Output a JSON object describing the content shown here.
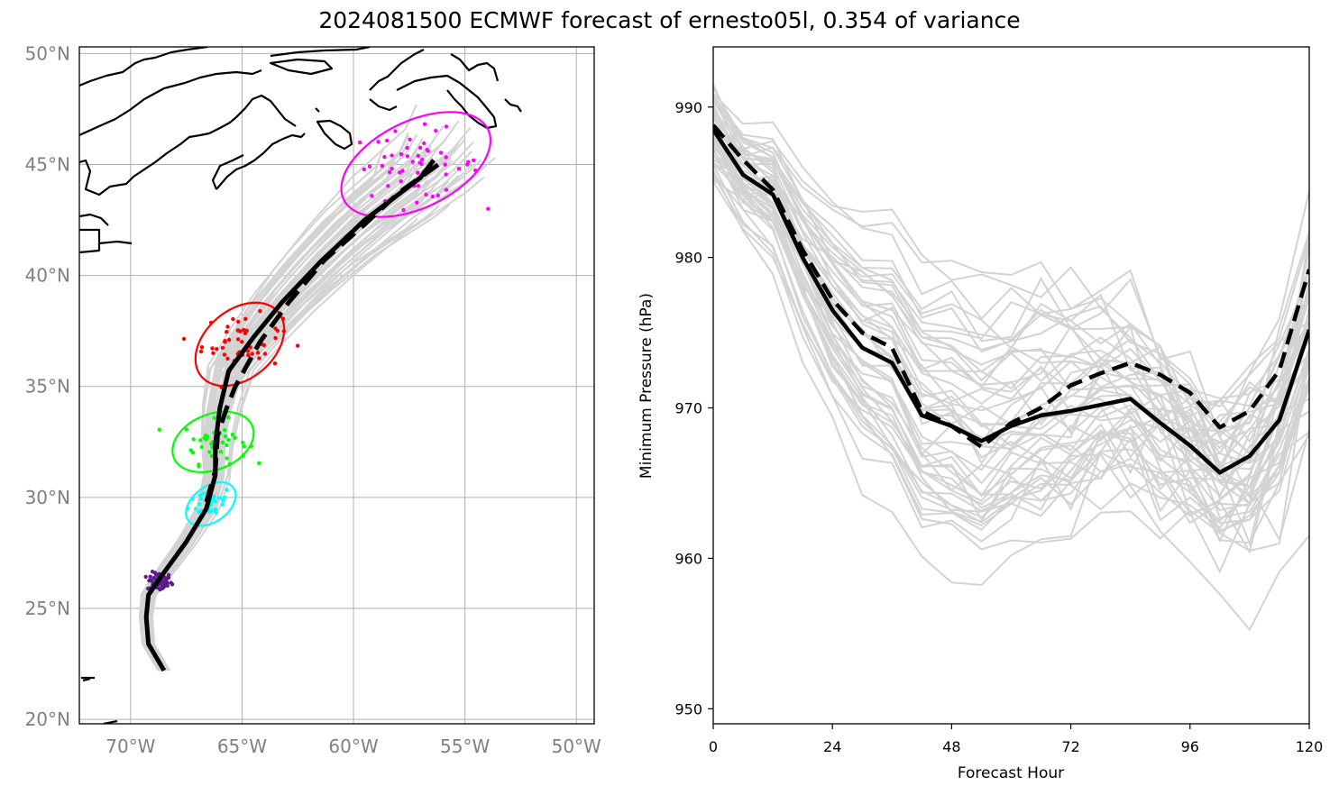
{
  "title": "2024081500 ECMWF forecast of ernesto05l, 0.354 of variance",
  "colors": {
    "ensemble": "#d3d3d3",
    "mean": "#000000",
    "grid": "#b0b0b0",
    "tick_gray": "#808080",
    "ellipse_24h": "#00ffff",
    "ellipse_48h": "#00ff00",
    "ellipse_72h": "#ff0000",
    "ellipse_120h": "#ff00ff",
    "initial_cluster": "#5b1a8e"
  },
  "chart_data": [
    {
      "type": "map-tracks",
      "lon_ticks": [
        "70°W",
        "65°W",
        "60°W",
        "55°W",
        "50°W"
      ],
      "lat_ticks": [
        "20°N",
        "25°N",
        "30°N",
        "35°N",
        "40°N",
        "45°N",
        "50°N"
      ],
      "lon_range": [
        -72.3,
        -49.2
      ],
      "lat_range": [
        19.8,
        50.3
      ],
      "grid": true,
      "tracks": {
        "solid_mean": [
          [
            -68.5,
            22.2
          ],
          [
            -69.2,
            23.4
          ],
          [
            -69.3,
            24.6
          ],
          [
            -69.2,
            25.6
          ],
          [
            -68.8,
            26.2
          ],
          [
            -67.5,
            28.0
          ],
          [
            -66.6,
            29.5
          ],
          [
            -66.2,
            31.0
          ],
          [
            -66.2,
            32.4
          ],
          [
            -66.0,
            34.0
          ],
          [
            -65.6,
            35.7
          ],
          [
            -64.5,
            37.2
          ],
          [
            -63.2,
            38.8
          ],
          [
            -61.5,
            40.6
          ],
          [
            -59.5,
            42.5
          ],
          [
            -57.0,
            44.4
          ],
          [
            -56.4,
            45.2
          ]
        ],
        "dashed_mean": [
          [
            -66.6,
            29.8
          ],
          [
            -66.2,
            31.2
          ],
          [
            -66.1,
            32.8
          ],
          [
            -65.7,
            34.0
          ],
          [
            -65.3,
            35.0
          ],
          [
            -64.2,
            37.0
          ],
          [
            -62.9,
            38.8
          ],
          [
            -61.3,
            40.7
          ],
          [
            -59.5,
            42.3
          ],
          [
            -58.0,
            43.7
          ],
          [
            -56.2,
            45.0
          ]
        ]
      },
      "ellipses": [
        {
          "hour": 24,
          "center": [
            -66.4,
            29.7
          ],
          "rx_deg": 1.25,
          "ry_deg": 0.8,
          "angle_deg": -36
        },
        {
          "hour": 48,
          "center": [
            -66.3,
            32.5
          ],
          "rx_deg": 1.9,
          "ry_deg": 1.25,
          "angle_deg": -22
        },
        {
          "hour": 72,
          "center": [
            -65.1,
            36.9
          ],
          "rx_deg": 2.25,
          "ry_deg": 1.55,
          "angle_deg": -40
        },
        {
          "hour": 120,
          "center": [
            -57.2,
            45.0
          ],
          "rx_deg": 3.6,
          "ry_deg": 1.95,
          "angle_deg": -26
        }
      ],
      "scatter_centers": [
        {
          "color_key": "initial_cluster",
          "center": [
            -68.7,
            26.2
          ],
          "spread": [
            0.45,
            0.35
          ],
          "count": 60
        },
        {
          "color_key": "ellipse_24h",
          "center": [
            -66.4,
            29.8
          ],
          "spread": [
            0.8,
            0.6
          ],
          "count": 35
        },
        {
          "color_key": "ellipse_48h",
          "center": [
            -66.2,
            32.5
          ],
          "spread": [
            1.2,
            0.8
          ],
          "count": 45
        },
        {
          "color_key": "ellipse_72h",
          "center": [
            -65.0,
            37.0
          ],
          "spread": [
            1.5,
            1.0
          ],
          "count": 50
        },
        {
          "color_key": "ellipse_120h",
          "center": [
            -57.2,
            45.0
          ],
          "spread": [
            2.4,
            1.3
          ],
          "count": 55
        }
      ]
    },
    {
      "type": "line",
      "xlabel": "Forecast Hour",
      "ylabel": "Minimum Pressure (hPa)",
      "xlim": [
        0,
        120
      ],
      "ylim": [
        949,
        994
      ],
      "xticks": [
        0,
        24,
        48,
        72,
        96,
        120
      ],
      "yticks": [
        950,
        960,
        970,
        980,
        990
      ],
      "x": [
        0,
        6,
        12,
        18,
        24,
        30,
        36,
        42,
        48,
        54,
        60,
        66,
        72,
        78,
        84,
        90,
        96,
        102,
        108,
        114,
        120
      ],
      "series": [
        {
          "style": "solid",
          "values": [
            988.5,
            985.5,
            984.2,
            980.0,
            976.5,
            974.0,
            973.0,
            969.5,
            968.8,
            967.8,
            968.8,
            969.5,
            969.8,
            970.2,
            970.6,
            969.0,
            967.5,
            965.7,
            966.8,
            969.2,
            975.2
          ]
        },
        {
          "style": "dashed",
          "values": [
            988.8,
            986.5,
            984.5,
            980.5,
            977.2,
            975.0,
            974.0,
            969.8,
            968.8,
            967.4,
            969.0,
            970.0,
            971.5,
            972.3,
            973.0,
            972.2,
            971.0,
            968.7,
            969.8,
            972.5,
            979.2
          ]
        }
      ]
    }
  ]
}
